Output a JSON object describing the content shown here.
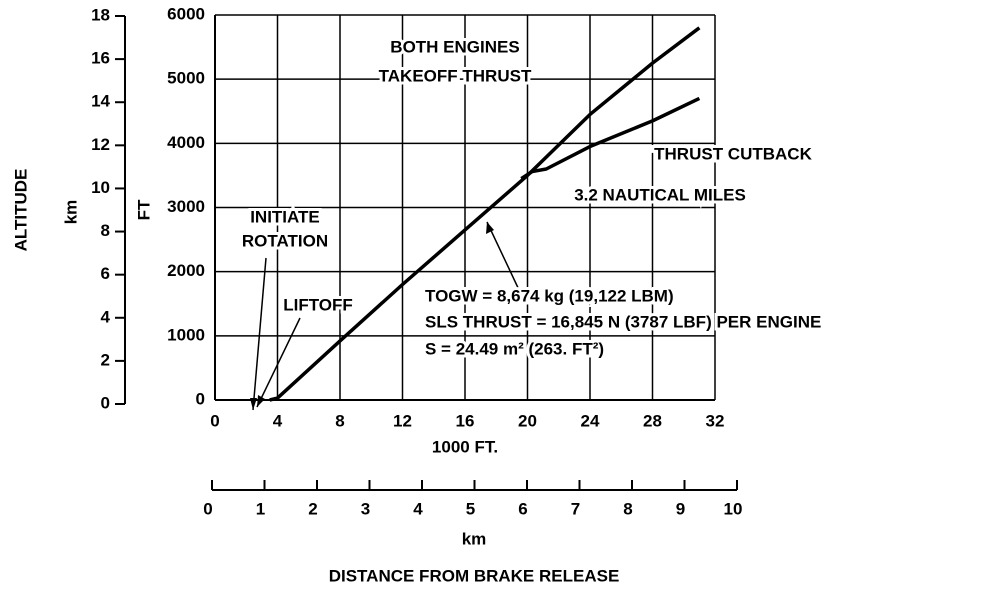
{
  "chart_data": {
    "type": "line",
    "xlabel": "1000 FT.",
    "ylabel": "FT",
    "y_secondary_title": "ALTITUDE",
    "y_secondary_unit": "km",
    "x_secondary_unit": "km",
    "x_title": "DISTANCE FROM BRAKE RELEASE",
    "xlim": [
      0,
      32
    ],
    "xticks": [
      0,
      4,
      8,
      12,
      16,
      20,
      24,
      28,
      32
    ],
    "ylim": [
      0,
      6000
    ],
    "yticks": [
      0,
      1000,
      2000,
      3000,
      4000,
      5000,
      6000
    ],
    "y2lim": [
      0,
      18
    ],
    "y2ticks": [
      0,
      2,
      4,
      6,
      8,
      10,
      12,
      14,
      16,
      18
    ],
    "x2lim": [
      0,
      10
    ],
    "x2ticks": [
      0,
      1,
      2,
      3,
      4,
      5,
      6,
      7,
      8,
      9,
      10
    ],
    "grid": true,
    "color": "#000000",
    "series": [
      {
        "color": "#000000",
        "x": [
          3.5,
          4,
          8,
          12,
          16,
          20,
          24,
          28,
          31
        ],
        "values": [
          0,
          30,
          920,
          1800,
          2650,
          3500,
          4450,
          5250,
          5800
        ]
      },
      {
        "color": "#000000",
        "x": [
          19.6,
          20.3,
          21.2,
          24,
          28,
          31
        ],
        "values": [
          3450,
          3560,
          3600,
          3950,
          4350,
          4700
        ]
      }
    ],
    "annotations": [
      "BOTH ENGINES",
      "TAKEOFF THRUST",
      "THRUST CUTBACK",
      "3.2 NAUTICAL MILES",
      "INITIATE",
      "ROTATION",
      "LIFTOFF",
      "TOGW = 8,674 kg (19,122 LBM)",
      "SLS THRUST = 16,845 N (3787 LBF) PER ENGINE",
      "S = 24.49 m² (263. FT²)"
    ]
  }
}
